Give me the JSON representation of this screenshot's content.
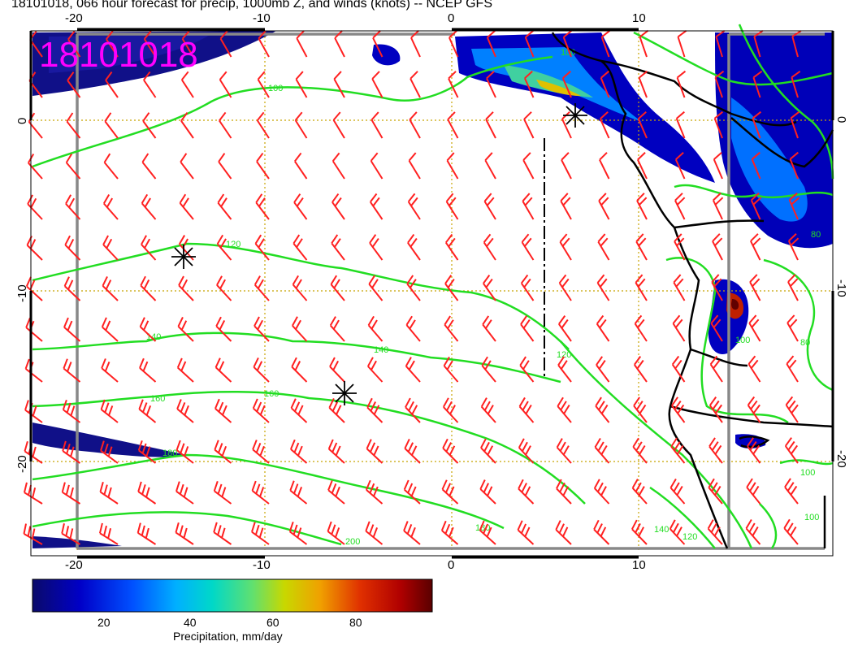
{
  "title": "18101018, 066 hour forecast for precip, 1000mb Z, and winds (knots) -- NCEP GFS",
  "stamp": "18101018",
  "axes": {
    "lon_ticks": [
      "-20",
      "-10",
      "0",
      "10"
    ],
    "lat_ticks": [
      "0",
      "-10",
      "-20"
    ]
  },
  "contours": {
    "color": "#22dd22",
    "labels": [
      "100",
      "120",
      "140",
      "140",
      "160",
      "160",
      "180",
      "180",
      "200",
      "120",
      "140",
      "120",
      "100",
      "100",
      "80",
      "80",
      "100",
      "100"
    ]
  },
  "wind_barb_color": "#ff2020",
  "grid_color": "#c8a400",
  "colorbar": {
    "label": "Precipitation, mm/day",
    "ticks": [
      "20",
      "40",
      "60",
      "80"
    ],
    "colors": [
      "#10107a",
      "#0000d0",
      "#0060ff",
      "#00a8ff",
      "#00d8d0",
      "#40e080",
      "#a0e040",
      "#e0d000",
      "#f09000",
      "#e03000",
      "#c00000",
      "#700000"
    ]
  }
}
